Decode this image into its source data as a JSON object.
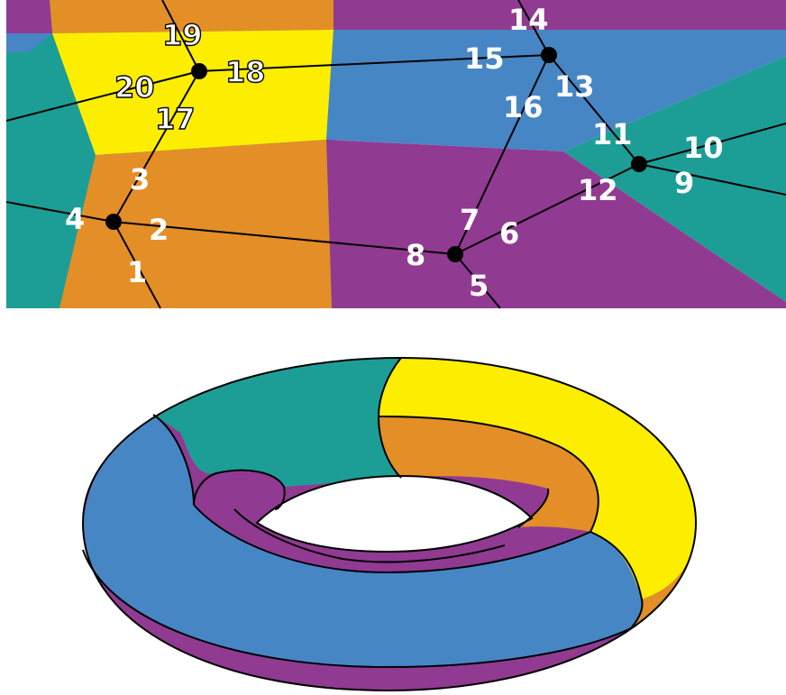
{
  "colors": {
    "orange": "#e48e27",
    "purple": "#913a92",
    "teal": "#1c9e96",
    "yellow": "#fdee00",
    "blue": "#4786c5",
    "vertex": "#000000",
    "edge": "#000000"
  },
  "graph": {
    "vertices": 6,
    "edges": 20,
    "region_colors": [
      "orange",
      "purple",
      "teal",
      "yellow",
      "blue"
    ],
    "edge_labels": [
      {
        "id": 1,
        "text": "1",
        "style": "filled"
      },
      {
        "id": 2,
        "text": "2",
        "style": "filled"
      },
      {
        "id": 3,
        "text": "3",
        "style": "filled"
      },
      {
        "id": 4,
        "text": "4",
        "style": "filled"
      },
      {
        "id": 5,
        "text": "5",
        "style": "filled"
      },
      {
        "id": 6,
        "text": "6",
        "style": "filled"
      },
      {
        "id": 7,
        "text": "7",
        "style": "filled"
      },
      {
        "id": 8,
        "text": "8",
        "style": "filled"
      },
      {
        "id": 9,
        "text": "9",
        "style": "filled"
      },
      {
        "id": 10,
        "text": "10",
        "style": "filled"
      },
      {
        "id": 11,
        "text": "11",
        "style": "filled"
      },
      {
        "id": 12,
        "text": "12",
        "style": "filled"
      },
      {
        "id": 13,
        "text": "13",
        "style": "filled"
      },
      {
        "id": 14,
        "text": "14",
        "style": "filled"
      },
      {
        "id": 15,
        "text": "15",
        "style": "filled"
      },
      {
        "id": 16,
        "text": "16",
        "style": "filled"
      },
      {
        "id": 17,
        "text": "17",
        "style": "outlined"
      },
      {
        "id": 18,
        "text": "18",
        "style": "outlined"
      },
      {
        "id": 19,
        "text": "19",
        "style": "outlined"
      },
      {
        "id": 20,
        "text": "20",
        "style": "outlined"
      }
    ]
  },
  "torus": {
    "region_colors": [
      "blue",
      "teal",
      "yellow",
      "orange",
      "purple"
    ]
  }
}
